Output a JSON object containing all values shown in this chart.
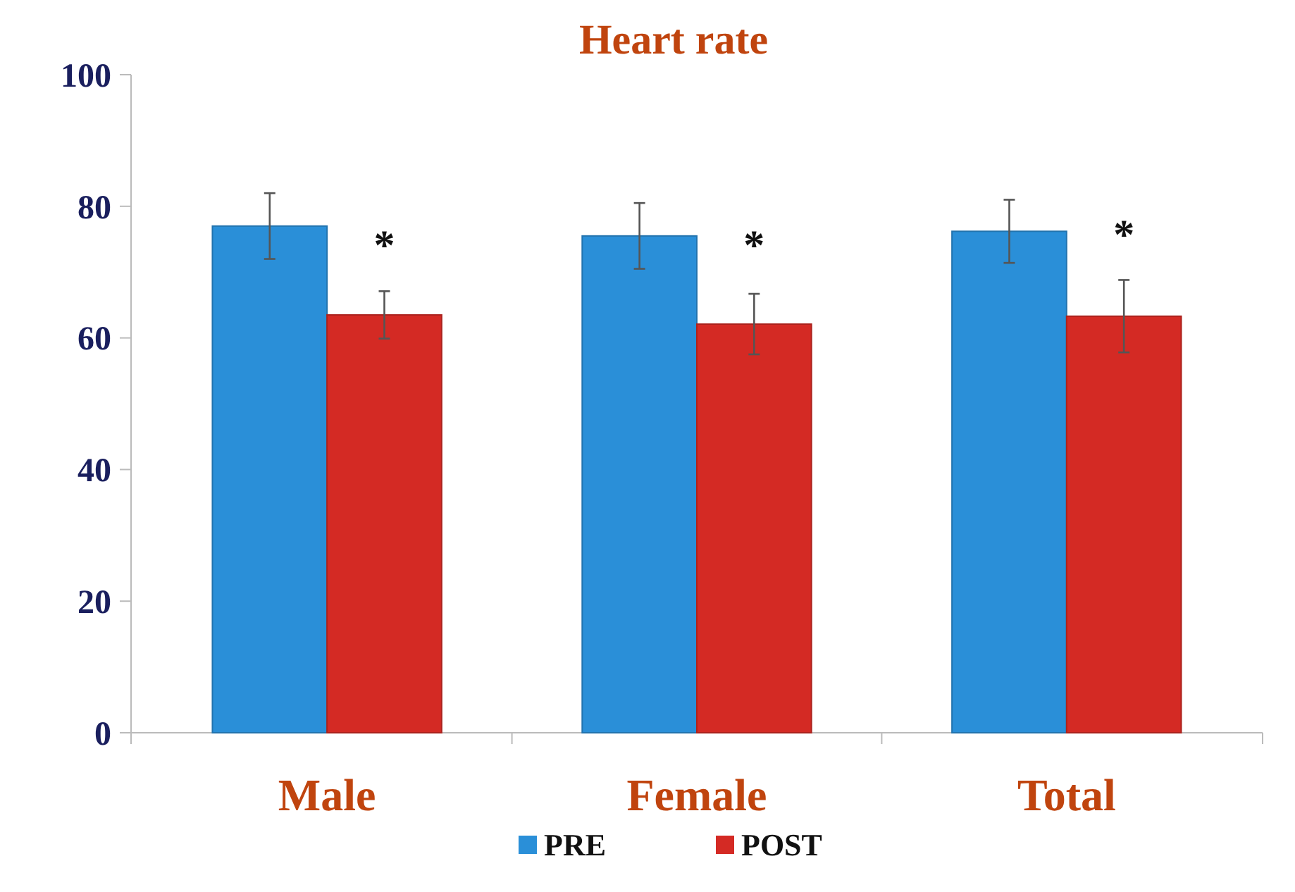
{
  "chart_data": {
    "type": "bar",
    "title": "Heart rate",
    "categories": [
      "Male",
      "Female",
      "Total"
    ],
    "series": [
      {
        "name": "PRE",
        "color": "#2a8fd8",
        "values": [
          77,
          75.5,
          76.2
        ],
        "errors": [
          5,
          5,
          4.8
        ]
      },
      {
        "name": "POST",
        "color": "#d42a24",
        "values": [
          63.5,
          62.1,
          63.3
        ],
        "errors": [
          3.6,
          4.6,
          5.5
        ]
      }
    ],
    "ylim": [
      0,
      100
    ],
    "yticks": [
      0,
      20,
      40,
      60,
      80,
      100
    ],
    "grid": false,
    "legend": "bottom",
    "annotations": [
      {
        "text": "*",
        "x": "Male",
        "y": 75
      },
      {
        "text": "*",
        "x": "Female",
        "y": 75
      },
      {
        "text": "*",
        "x": "Total",
        "y": 76.5
      }
    ]
  }
}
